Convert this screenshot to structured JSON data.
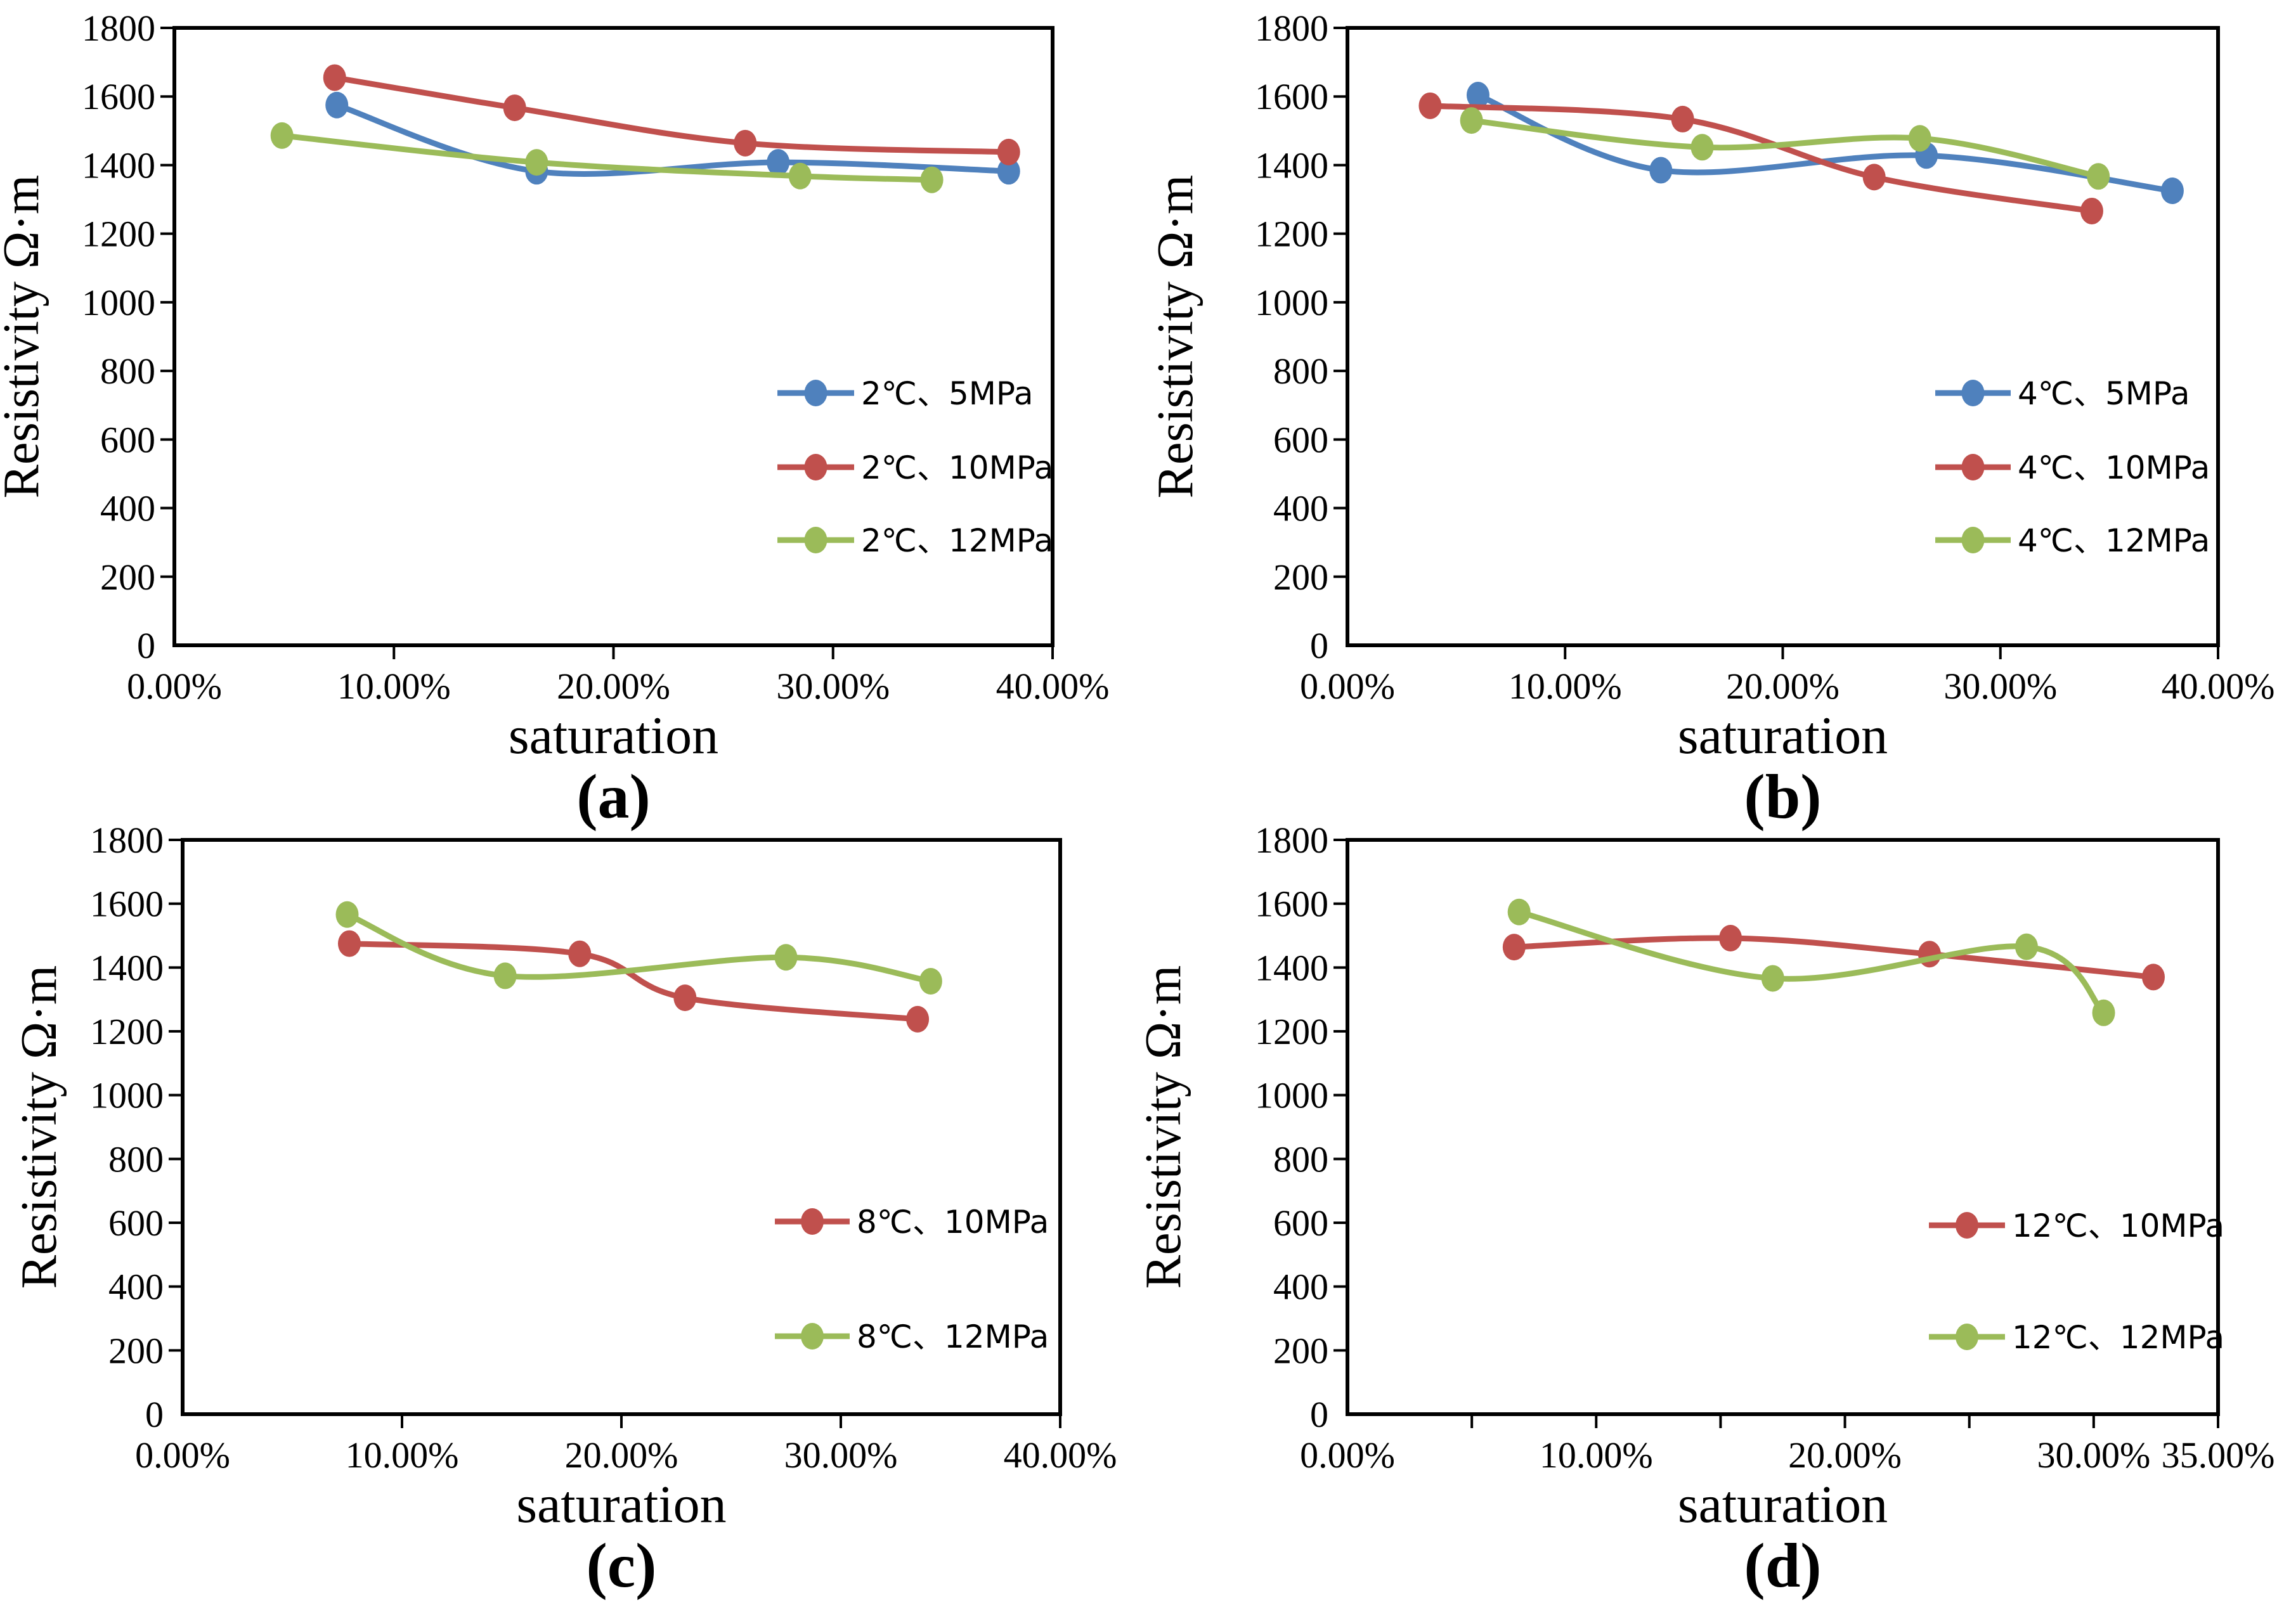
{
  "page": {
    "background": "#ffffff"
  },
  "colors": {
    "blue": "#4F81BD",
    "red": "#C0504D",
    "green": "#9BBB59",
    "axis": "#000000",
    "text": "#000000"
  },
  "chart_data": [
    {
      "id": "a",
      "type": "line",
      "caption": "(a)",
      "xlabel": "saturation",
      "ylabel": "Resistivity Ω·m",
      "xlim": [
        0,
        40
      ],
      "ylim": [
        0,
        1800
      ],
      "grid": false,
      "legend_position": "inside-right",
      "xticks": [
        {
          "v": 0,
          "label": "0.00%"
        },
        {
          "v": 10,
          "label": "10.00%"
        },
        {
          "v": 20,
          "label": "20.00%"
        },
        {
          "v": 30,
          "label": "30.00%"
        },
        {
          "v": 40,
          "label": "40.00%"
        }
      ],
      "minor_xticks": [],
      "yticks": [
        {
          "v": 0,
          "label": "0"
        },
        {
          "v": 200,
          "label": "200"
        },
        {
          "v": 400,
          "label": "400"
        },
        {
          "v": 600,
          "label": "600"
        },
        {
          "v": 800,
          "label": "800"
        },
        {
          "v": 1000,
          "label": "1000"
        },
        {
          "v": 1200,
          "label": "1200"
        },
        {
          "v": 1400,
          "label": "1400"
        },
        {
          "v": 1600,
          "label": "1600"
        },
        {
          "v": 1800,
          "label": "1800"
        }
      ],
      "series": [
        {
          "name": "2℃、5MPa",
          "color_key": "blue",
          "points": [
            [
              7.4,
              1575
            ],
            [
              16.5,
              1382
            ],
            [
              27.5,
              1408
            ],
            [
              38.0,
              1382
            ]
          ]
        },
        {
          "name": "2℃、10MPa",
          "color_key": "red",
          "points": [
            [
              7.3,
              1655
            ],
            [
              15.5,
              1567
            ],
            [
              26.0,
              1464
            ],
            [
              38.0,
              1438
            ]
          ]
        },
        {
          "name": "2℃、12MPa",
          "color_key": "green",
          "points": [
            [
              4.9,
              1486
            ],
            [
              16.5,
              1408
            ],
            [
              28.5,
              1368
            ],
            [
              34.5,
              1357
            ]
          ]
        }
      ]
    },
    {
      "id": "b",
      "type": "line",
      "caption": "(b)",
      "xlabel": "saturation",
      "ylabel": "Resistivity Ω·m",
      "xlim": [
        0,
        40
      ],
      "ylim": [
        0,
        1800
      ],
      "grid": false,
      "legend_position": "inside-right",
      "xticks": [
        {
          "v": 0,
          "label": "0.00%"
        },
        {
          "v": 10,
          "label": "10.00%"
        },
        {
          "v": 20,
          "label": "20.00%"
        },
        {
          "v": 30,
          "label": "30.00%"
        },
        {
          "v": 40,
          "label": "40.00%"
        }
      ],
      "minor_xticks": [],
      "yticks": [
        {
          "v": 0,
          "label": "0"
        },
        {
          "v": 200,
          "label": "200"
        },
        {
          "v": 400,
          "label": "400"
        },
        {
          "v": 600,
          "label": "600"
        },
        {
          "v": 800,
          "label": "800"
        },
        {
          "v": 1000,
          "label": "1000"
        },
        {
          "v": 1200,
          "label": "1200"
        },
        {
          "v": 1400,
          "label": "1400"
        },
        {
          "v": 1600,
          "label": "1600"
        },
        {
          "v": 1800,
          "label": "1800"
        }
      ],
      "series": [
        {
          "name": "4℃、5MPa",
          "color_key": "blue",
          "points": [
            [
              6.0,
              1604
            ],
            [
              14.4,
              1385
            ],
            [
              26.6,
              1428
            ],
            [
              37.9,
              1325
            ]
          ]
        },
        {
          "name": "4℃、10MPa",
          "color_key": "red",
          "points": [
            [
              3.8,
              1573
            ],
            [
              15.4,
              1534
            ],
            [
              24.2,
              1365
            ],
            [
              34.2,
              1266
            ]
          ]
        },
        {
          "name": "4℃、12MPa",
          "color_key": "green",
          "points": [
            [
              5.7,
              1530
            ],
            [
              16.3,
              1452
            ],
            [
              26.3,
              1478
            ],
            [
              34.5,
              1367
            ]
          ]
        }
      ]
    },
    {
      "id": "c",
      "type": "line",
      "caption": "(c)",
      "xlabel": "saturation",
      "ylabel": "Resistivity Ω·m",
      "xlim": [
        0,
        40
      ],
      "ylim": [
        0,
        1800
      ],
      "grid": false,
      "legend_position": "inside-right-lower",
      "xticks": [
        {
          "v": 0,
          "label": "0.00%"
        },
        {
          "v": 10,
          "label": "10.00%"
        },
        {
          "v": 20,
          "label": "20.00%"
        },
        {
          "v": 30,
          "label": "30.00%"
        },
        {
          "v": 40,
          "label": "40.00%"
        }
      ],
      "minor_xticks": [],
      "yticks": [
        {
          "v": 0,
          "label": "0"
        },
        {
          "v": 200,
          "label": "200"
        },
        {
          "v": 400,
          "label": "400"
        },
        {
          "v": 600,
          "label": "600"
        },
        {
          "v": 800,
          "label": "800"
        },
        {
          "v": 1000,
          "label": "1000"
        },
        {
          "v": 1200,
          "label": "1200"
        },
        {
          "v": 1400,
          "label": "1400"
        },
        {
          "v": 1600,
          "label": "1600"
        },
        {
          "v": 1800,
          "label": "1800"
        }
      ],
      "series": [
        {
          "name": "8℃、10MPa",
          "color_key": "red",
          "points": [
            [
              7.6,
              1475
            ],
            [
              18.1,
              1443
            ],
            [
              22.9,
              1305
            ],
            [
              33.5,
              1238
            ]
          ]
        },
        {
          "name": "8℃、12MPa",
          "color_key": "green",
          "points": [
            [
              7.5,
              1566
            ],
            [
              14.7,
              1374
            ],
            [
              27.5,
              1432
            ],
            [
              34.1,
              1357
            ]
          ]
        }
      ]
    },
    {
      "id": "d",
      "type": "line",
      "caption": "(d)",
      "xlabel": "saturation",
      "ylabel": "Resistivity Ω·m",
      "xlim": [
        0,
        35
      ],
      "ylim": [
        0,
        1800
      ],
      "grid": false,
      "legend_position": "inside-right-lower",
      "xticks": [
        {
          "v": 0,
          "label": "0.00%"
        },
        {
          "v": 10,
          "label": "10.00%"
        },
        {
          "v": 20,
          "label": "20.00%"
        },
        {
          "v": 30,
          "label": "30.00%"
        },
        {
          "v": 35,
          "label": "35.00%"
        }
      ],
      "minor_xticks": [
        5,
        15,
        25
      ],
      "yticks": [
        {
          "v": 0,
          "label": "0"
        },
        {
          "v": 200,
          "label": "200"
        },
        {
          "v": 400,
          "label": "400"
        },
        {
          "v": 600,
          "label": "600"
        },
        {
          "v": 800,
          "label": "800"
        },
        {
          "v": 1000,
          "label": "1000"
        },
        {
          "v": 1200,
          "label": "1200"
        },
        {
          "v": 1400,
          "label": "1400"
        },
        {
          "v": 1600,
          "label": "1600"
        },
        {
          "v": 1800,
          "label": "1800"
        }
      ],
      "series": [
        {
          "name": "12℃、10MPa",
          "color_key": "red",
          "points": [
            [
              6.7,
              1464
            ],
            [
              15.4,
              1492
            ],
            [
              23.4,
              1442
            ],
            [
              32.4,
              1370
            ]
          ]
        },
        {
          "name": "12℃、12MPa",
          "color_key": "green",
          "points": [
            [
              6.9,
              1574
            ],
            [
              17.1,
              1366
            ],
            [
              27.3,
              1465
            ],
            [
              30.4,
              1258
            ]
          ]
        }
      ]
    }
  ]
}
